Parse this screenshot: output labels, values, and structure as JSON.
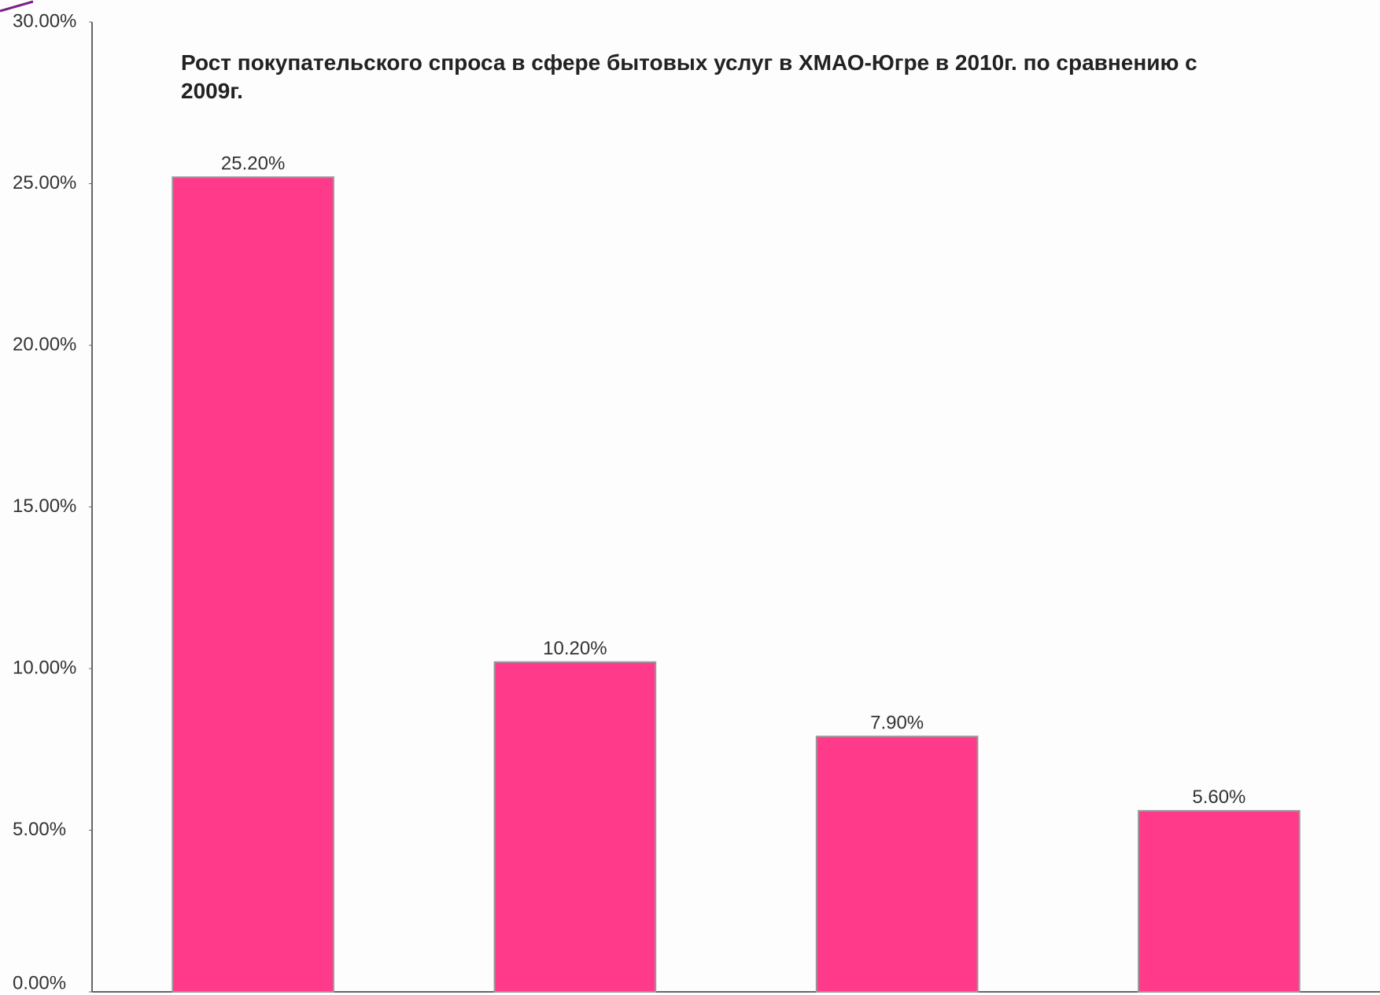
{
  "chart_data": {
    "type": "bar",
    "title": "Рост покупательского спроса в сфере бытовых услуг в ХМАО-Югре в 2010г. по сравнению с 2009г.",
    "categories": [
      null,
      null,
      null,
      null
    ],
    "values": [
      25.2,
      10.2,
      7.9,
      5.6
    ],
    "value_labels": [
      "25.20%",
      "10.20%",
      "7.90%",
      "5.60%"
    ],
    "color": "#ff3a8a",
    "ylim": [
      0,
      30
    ],
    "yticks": [
      {
        "value": 0,
        "label": "0.00%"
      },
      {
        "value": 5,
        "label": "5.00%"
      },
      {
        "value": 10,
        "label": "10.00%"
      },
      {
        "value": 15,
        "label": "15.00%"
      },
      {
        "value": 20,
        "label": "20.00%"
      },
      {
        "value": 25,
        "label": "25.00%"
      },
      {
        "value": 30,
        "label": "30.00%"
      }
    ],
    "grid": false
  }
}
